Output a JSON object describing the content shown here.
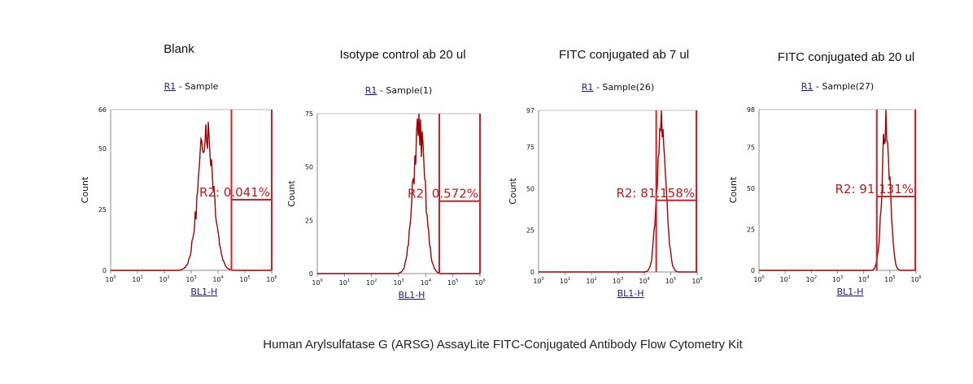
{
  "caption": "Human Arylsulfatase G (ARSG) AssayLite FITC-Conjugated Antibody Flow Cytometry Kit",
  "colors": {
    "data": "#a00000",
    "gate": "#d02020",
    "axis": "#888888"
  },
  "chart_data": [
    {
      "type": "histogram",
      "title": "Blank",
      "region": "R1",
      "sample": " - Sample",
      "xlabel": "BL1-H",
      "ylabel": "Count",
      "ylim": [
        0,
        66
      ],
      "yticks": [
        0,
        25,
        50,
        66
      ],
      "xlim_log10": [
        0,
        6
      ],
      "xticks": [
        "10^0",
        "10^1",
        "10^2",
        "10^3",
        "10^4",
        "10^5",
        "10^6"
      ],
      "gate_label": "R2: 0.041%",
      "gate_range_log10": [
        4.5,
        6.0
      ],
      "gate_level": 29,
      "peak_log10": 3.55,
      "peak_count": 62,
      "spread_log10": 0.28
    },
    {
      "type": "histogram",
      "title": "Isotype control ab 20 ul",
      "region": "R1",
      "sample": " - Sample(1)",
      "xlabel": "BL1-H",
      "ylabel": "Count",
      "ylim": [
        0,
        75
      ],
      "yticks": [
        0,
        25,
        50,
        75
      ],
      "xlim_log10": [
        0,
        6
      ],
      "xticks": [
        "10^0",
        "10^1",
        "10^2",
        "10^3",
        "10^4",
        "10^5",
        "10^6"
      ],
      "gate_label": "R2: 0.572%",
      "gate_range_log10": [
        4.5,
        6.0
      ],
      "gate_level": 34,
      "peak_log10": 3.75,
      "peak_count": 72,
      "spread_log10": 0.22
    },
    {
      "type": "histogram",
      "title": "FITC conjugated ab 7 ul",
      "region": "R1",
      "sample": " - Sample(26)",
      "xlabel": "BL1-H",
      "ylabel": "Count",
      "ylim": [
        0,
        97
      ],
      "yticks": [
        0,
        25,
        50,
        75,
        97
      ],
      "xlim_log10": [
        0,
        6
      ],
      "xticks": [
        "10^0",
        "10^1",
        "10^2",
        "10^3",
        "10^4",
        "10^5",
        "10^6"
      ],
      "gate_label": "R2: 81.158%",
      "gate_range_log10": [
        4.45,
        5.97
      ],
      "gate_level": 43,
      "peak_log10": 4.65,
      "peak_count": 95,
      "spread_log10": 0.17
    },
    {
      "type": "histogram",
      "title": "FITC conjugated ab 20 ul",
      "region": "R1",
      "sample": " - Sample(27)",
      "xlabel": "BL1-H",
      "ylabel": "Count",
      "ylim": [
        0,
        98
      ],
      "yticks": [
        0,
        25,
        50,
        75,
        98
      ],
      "xlim_log10": [
        0,
        6
      ],
      "xticks": [
        "10^0",
        "10^1",
        "10^2",
        "10^3",
        "10^4",
        "10^5",
        "10^6"
      ],
      "gate_label": "R2: 91.131%",
      "gate_range_log10": [
        4.5,
        5.97
      ],
      "gate_level": 45,
      "peak_log10": 4.85,
      "peak_count": 93,
      "spread_log10": 0.15
    }
  ]
}
